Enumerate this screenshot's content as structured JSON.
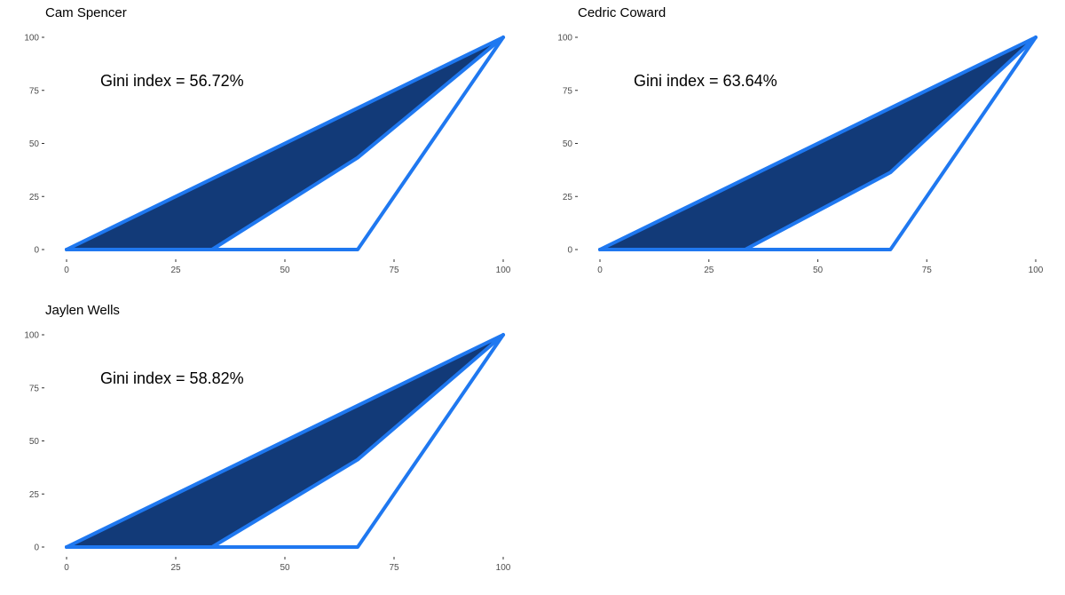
{
  "chart_data": [
    {
      "type": "area",
      "title": "Cam Spencer",
      "xlabel": "",
      "ylabel": "",
      "xlim": [
        0,
        100
      ],
      "ylim": [
        0,
        100
      ],
      "x_ticks": [
        0,
        25,
        50,
        75,
        100
      ],
      "y_ticks": [
        0,
        25,
        50,
        75,
        100
      ],
      "grid": false,
      "annotation": "Gini index = 56.72%",
      "equality_line": {
        "x": [
          0,
          100
        ],
        "y": [
          0,
          100
        ]
      },
      "lorenz_curve": {
        "x": [
          0,
          33.33,
          66.67,
          100
        ],
        "y": [
          0,
          0,
          43.28,
          100
        ]
      },
      "max_inequality_line": {
        "x": [
          0,
          66.67,
          100
        ],
        "y": [
          0,
          0,
          100
        ]
      },
      "colors": {
        "fill": "#123a78",
        "line": "#1f78f0"
      }
    },
    {
      "type": "area",
      "title": "Cedric Coward",
      "xlabel": "",
      "ylabel": "",
      "xlim": [
        0,
        100
      ],
      "ylim": [
        0,
        100
      ],
      "x_ticks": [
        0,
        25,
        50,
        75,
        100
      ],
      "y_ticks": [
        0,
        25,
        50,
        75,
        100
      ],
      "grid": false,
      "annotation": "Gini index = 63.64%",
      "equality_line": {
        "x": [
          0,
          100
        ],
        "y": [
          0,
          100
        ]
      },
      "lorenz_curve": {
        "x": [
          0,
          33.33,
          66.67,
          100
        ],
        "y": [
          0,
          0,
          36.36,
          100
        ]
      },
      "max_inequality_line": {
        "x": [
          0,
          66.67,
          100
        ],
        "y": [
          0,
          0,
          100
        ]
      },
      "colors": {
        "fill": "#123a78",
        "line": "#1f78f0"
      }
    },
    {
      "type": "area",
      "title": "Jaylen Wells",
      "xlabel": "",
      "ylabel": "",
      "xlim": [
        0,
        100
      ],
      "ylim": [
        0,
        100
      ],
      "x_ticks": [
        0,
        25,
        50,
        75,
        100
      ],
      "y_ticks": [
        0,
        25,
        50,
        75,
        100
      ],
      "grid": false,
      "annotation": "Gini index = 58.82%",
      "equality_line": {
        "x": [
          0,
          100
        ],
        "y": [
          0,
          100
        ]
      },
      "lorenz_curve": {
        "x": [
          0,
          33.33,
          66.67,
          100
        ],
        "y": [
          0,
          0,
          41.18,
          100
        ]
      },
      "max_inequality_line": {
        "x": [
          0,
          66.67,
          100
        ],
        "y": [
          0,
          0,
          100
        ]
      },
      "colors": {
        "fill": "#123a78",
        "line": "#1f78f0"
      }
    }
  ]
}
